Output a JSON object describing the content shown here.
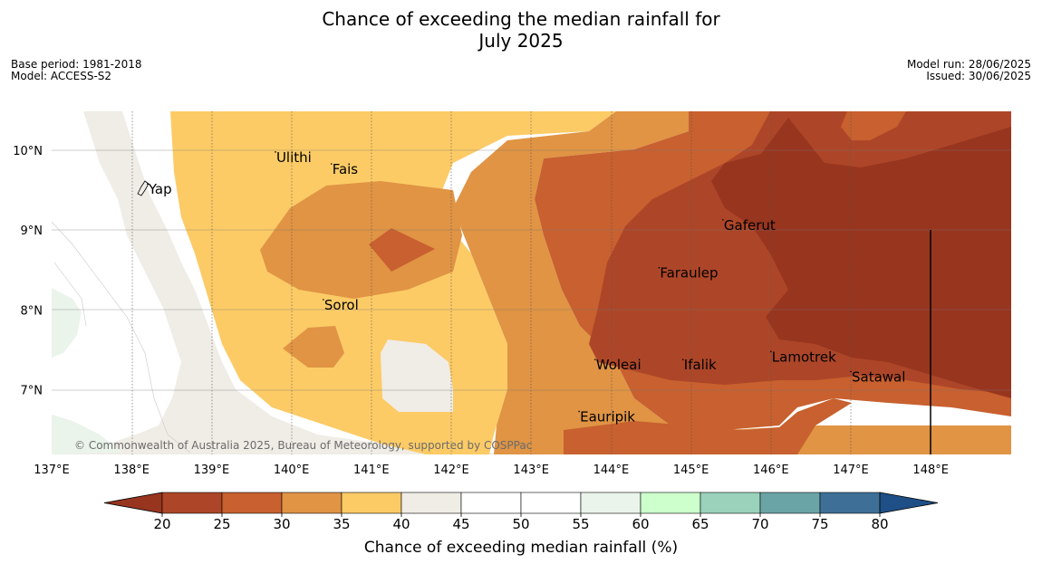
{
  "title": {
    "line1": "Chance of exceeding the median rainfall for",
    "line2": "July 2025"
  },
  "meta": {
    "base_period": "Base period: 1981-2018",
    "model": "Model: ACCESS-S2",
    "model_run": "Model run: 28/06/2025",
    "issued": "Issued: 30/06/2025"
  },
  "map": {
    "lon_ticks": [
      "137°E",
      "138°E",
      "139°E",
      "140°E",
      "141°E",
      "142°E",
      "143°E",
      "144°E",
      "145°E",
      "146°E",
      "147°E",
      "148°E"
    ],
    "lat_ticks": [
      "10°N",
      "9°N",
      "8°N",
      "7°N"
    ],
    "places": [
      {
        "name": "Ulithi",
        "lon": 139.8,
        "lat": 9.9
      },
      {
        "name": "Fais",
        "lon": 140.5,
        "lat": 9.75
      },
      {
        "name": "Yap",
        "lon": 138.2,
        "lat": 9.5
      },
      {
        "name": "Gaferut",
        "lon": 145.4,
        "lat": 9.05
      },
      {
        "name": "Faraulep",
        "lon": 144.6,
        "lat": 8.45
      },
      {
        "name": "Sorol",
        "lon": 140.4,
        "lat": 8.05
      },
      {
        "name": "Lamotrek",
        "lon": 146.0,
        "lat": 7.4
      },
      {
        "name": "Woleai",
        "lon": 143.8,
        "lat": 7.3
      },
      {
        "name": "Ifalik",
        "lon": 144.9,
        "lat": 7.3
      },
      {
        "name": "Satawal",
        "lon": 147.0,
        "lat": 7.15
      },
      {
        "name": "Eauripik",
        "lon": 143.6,
        "lat": 6.65
      }
    ],
    "credit": "© Commonwealth of Australia 2025, Bureau of Meteorology, supported by COSPPac"
  },
  "colorbar": {
    "label": "Chance of exceeding median rainfall (%)",
    "ticks": [
      "20",
      "25",
      "30",
      "35",
      "40",
      "45",
      "50",
      "55",
      "60",
      "65",
      "70",
      "75",
      "80"
    ],
    "colors": {
      "under": "#98351f",
      "bins": [
        "#ad4628",
        "#c8602f",
        "#e09444",
        "#fccb66",
        "#f0ece6",
        "#ffffff",
        "#ffffff",
        "#eaf4ea",
        "#ccffcc",
        "#9ad2bb",
        "#6ba4a6",
        "#3e7097"
      ],
      "over": "#1e4f86"
    }
  }
}
